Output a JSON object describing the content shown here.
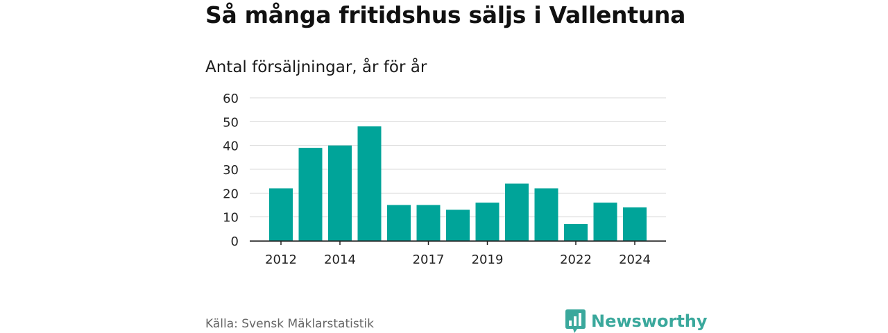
{
  "title": "Så många fritidshus säljs i Vallentuna",
  "subtitle": "Antal försäljningar, år för år",
  "source": "Källa: Svensk Mäklarstatistik",
  "brand": {
    "name": "Newsworthy",
    "color": "#3aa89c",
    "icon": "newsworthy-logo-icon"
  },
  "chart_data": {
    "type": "bar",
    "categories": [
      "2012",
      "2013",
      "2014",
      "2015",
      "2016",
      "2017",
      "2018",
      "2019",
      "2020",
      "2021",
      "2022",
      "2023",
      "2024"
    ],
    "values": [
      22,
      39,
      40,
      48,
      15,
      15,
      13,
      16,
      24,
      22,
      7,
      16,
      14
    ],
    "x_tick_labels": [
      "2012",
      "2014",
      "2017",
      "2019",
      "2022",
      "2024"
    ],
    "y_ticks": [
      0,
      10,
      20,
      30,
      40,
      50,
      60
    ],
    "ylim": [
      0,
      60
    ],
    "xlabel": "",
    "ylabel": "",
    "grid": true,
    "bar_color": "#00a499",
    "grid_color": "#d9d9d9",
    "axis_color": "#222222"
  }
}
